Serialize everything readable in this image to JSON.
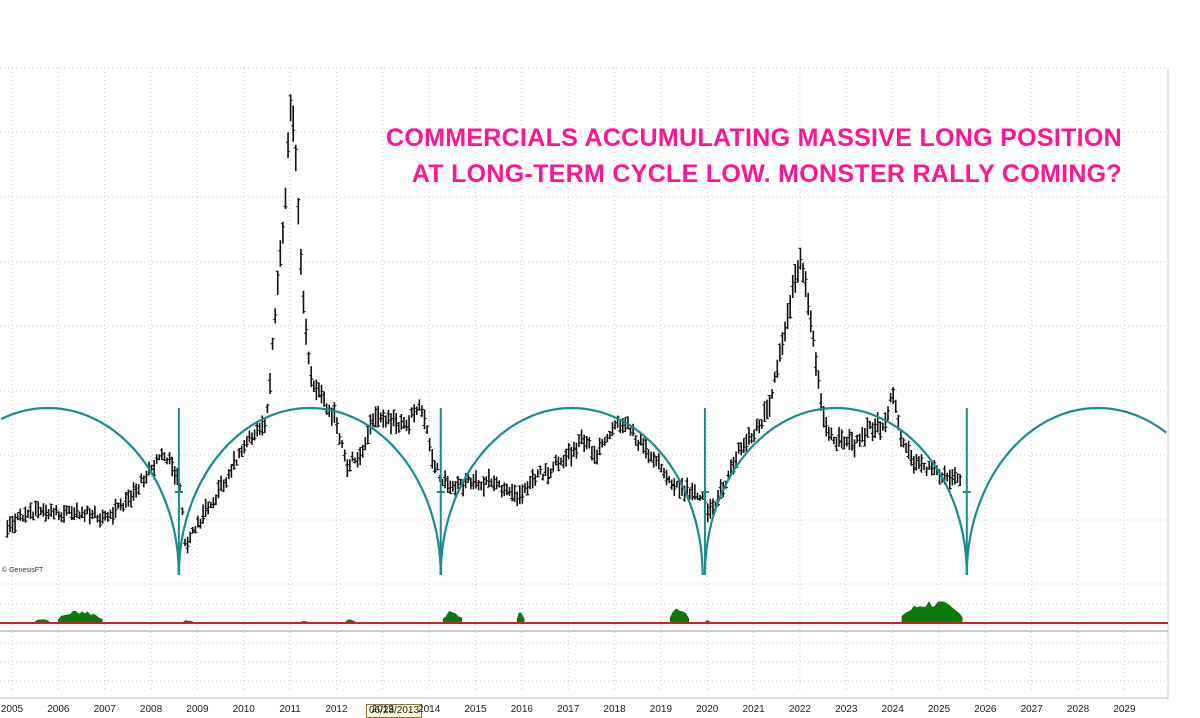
{
  "headline": {
    "line1": "COMMERCIALS ACCUMULATING MASSIVE LONG POSITION",
    "line2": "AT LONG-TERM CYCLE LOW.  MONSTER RALLY COMING?"
  },
  "watermark": "© GenesisFT",
  "date_marker": "06/28/2013",
  "colors": {
    "headline": "#ff1493",
    "price_bars": "#111111",
    "cycle_arcs": "#1a8c8c",
    "histogram": "#0a7a0a",
    "zero_line": "#cc2222"
  },
  "chart_data": {
    "type": "bar",
    "x_axis": {
      "tick_labels": [
        "2005",
        "2006",
        "2007",
        "2008",
        "2009",
        "2010",
        "2011",
        "2012",
        "2013",
        "2014",
        "2015",
        "2016",
        "2017",
        "2018",
        "2019",
        "2020",
        "2021",
        "2022",
        "2023",
        "2024",
        "2025",
        "2026",
        "2027",
        "2028",
        "2029"
      ],
      "range": [
        2004.9,
        2030.6
      ]
    },
    "grid": true,
    "price_keypoints": [
      [
        2004.9,
        525
      ],
      [
        2005.5,
        510
      ],
      [
        2006.0,
        515
      ],
      [
        2006.5,
        512
      ],
      [
        2007.0,
        520
      ],
      [
        2007.5,
        500
      ],
      [
        2008.0,
        470
      ],
      [
        2008.3,
        455
      ],
      [
        2008.5,
        470
      ],
      [
        2008.6,
        480
      ],
      [
        2008.75,
        545
      ],
      [
        2009.2,
        510
      ],
      [
        2009.6,
        480
      ],
      [
        2010.0,
        445
      ],
      [
        2010.3,
        430
      ],
      [
        2010.5,
        420
      ],
      [
        2010.65,
        330
      ],
      [
        2010.8,
        250
      ],
      [
        2010.9,
        200
      ],
      [
        2011.0,
        100
      ],
      [
        2011.1,
        130
      ],
      [
        2011.2,
        240
      ],
      [
        2011.35,
        340
      ],
      [
        2011.5,
        385
      ],
      [
        2011.8,
        405
      ],
      [
        2012.0,
        420
      ],
      [
        2012.2,
        465
      ],
      [
        2012.5,
        455
      ],
      [
        2012.8,
        420
      ],
      [
        2013.0,
        420
      ],
      [
        2013.5,
        425
      ],
      [
        2013.8,
        405
      ],
      [
        2014.15,
        470
      ],
      [
        2014.5,
        490
      ],
      [
        2015.0,
        480
      ],
      [
        2015.5,
        485
      ],
      [
        2015.9,
        495
      ],
      [
        2016.2,
        480
      ],
      [
        2016.6,
        470
      ],
      [
        2017.0,
        455
      ],
      [
        2017.3,
        440
      ],
      [
        2017.6,
        455
      ],
      [
        2018.0,
        430
      ],
      [
        2018.2,
        420
      ],
      [
        2018.5,
        440
      ],
      [
        2018.9,
        460
      ],
      [
        2019.2,
        480
      ],
      [
        2019.5,
        490
      ],
      [
        2019.9,
        495
      ],
      [
        2020.05,
        515
      ],
      [
        2020.4,
        480
      ],
      [
        2020.7,
        450
      ],
      [
        2021.0,
        435
      ],
      [
        2021.3,
        410
      ],
      [
        2021.5,
        370
      ],
      [
        2021.65,
        340
      ],
      [
        2021.8,
        300
      ],
      [
        2022.0,
        260
      ],
      [
        2022.1,
        275
      ],
      [
        2022.25,
        330
      ],
      [
        2022.4,
        380
      ],
      [
        2022.55,
        430
      ],
      [
        2022.8,
        440
      ],
      [
        2023.2,
        445
      ],
      [
        2023.5,
        430
      ],
      [
        2023.8,
        425
      ],
      [
        2024.0,
        395
      ],
      [
        2024.2,
        440
      ],
      [
        2024.5,
        465
      ],
      [
        2024.8,
        470
      ],
      [
        2025.1,
        475
      ],
      [
        2025.3,
        480
      ],
      [
        2025.5,
        482
      ]
    ],
    "cycle_lows": [
      "2008.6",
      "2014.25",
      "2019.95",
      "2025.6"
    ],
    "cycle_length_years": 5.65,
    "histogram_spans": [
      [
        2005.5,
        2005.8,
        5
      ],
      [
        2006.0,
        2006.95,
        14
      ],
      [
        2008.7,
        2008.9,
        3
      ],
      [
        2011.2,
        2011.4,
        2
      ],
      [
        2012.2,
        2012.4,
        4
      ],
      [
        2014.3,
        2014.7,
        14
      ],
      [
        2015.9,
        2016.05,
        13
      ],
      [
        2019.2,
        2019.6,
        18
      ],
      [
        2019.95,
        2020.05,
        3
      ],
      [
        2024.2,
        2025.5,
        24
      ]
    ]
  }
}
